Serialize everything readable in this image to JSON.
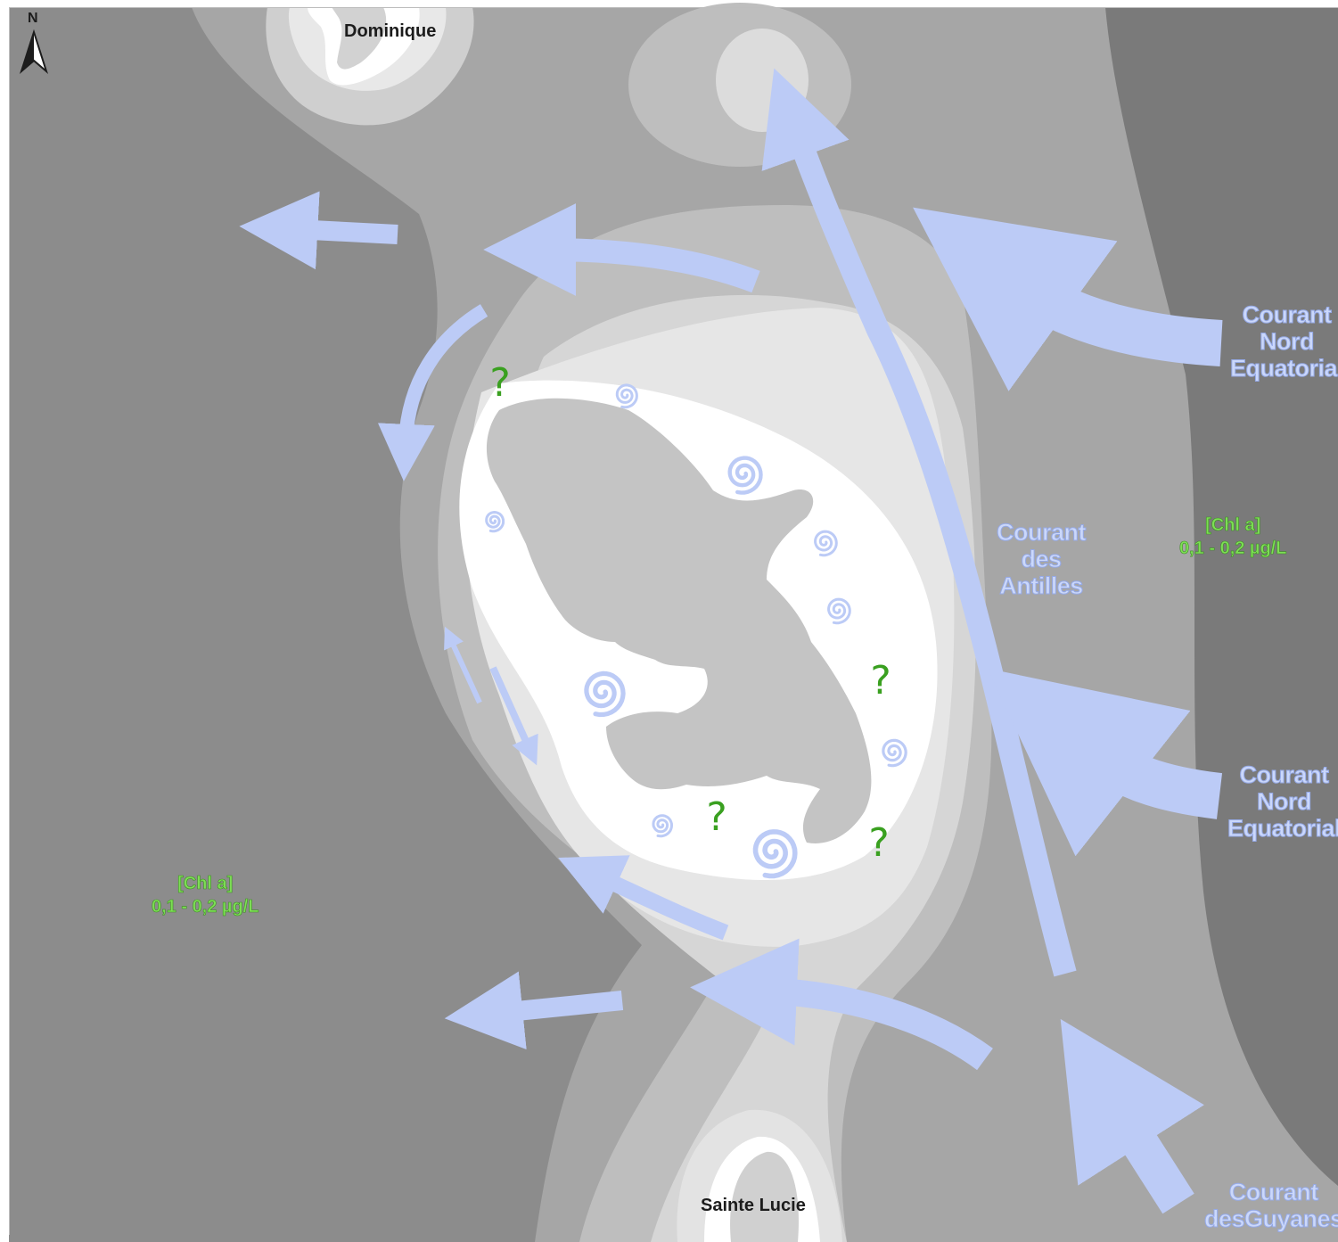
{
  "map": {
    "north_arrow": {
      "letter": "N",
      "icon": "north-arrow-icon"
    },
    "islands": {
      "north": "Dominique",
      "south": "Sainte Lucie"
    },
    "currents": {
      "north_equatorial_1": [
        "Courant",
        "Nord",
        "Equatorial"
      ],
      "north_equatorial_2": [
        "Courant",
        "Nord",
        "Equatorial"
      ],
      "antilles": [
        "Courant",
        "des",
        "Antilles"
      ],
      "guyanes": [
        "Courant",
        "desGuyanes"
      ]
    },
    "chlorophyll": {
      "west": [
        "[Chl a]",
        "0,1 - 0,2 µg/L"
      ],
      "east": [
        "[Chl a]",
        "0,1 - 0,2 µg/L"
      ]
    },
    "uncertainty_marker": "?",
    "colors": {
      "ocean_deep": "#8c8c8c",
      "ocean_mid": "#a6a6a6",
      "ocean_light": "#bebebe",
      "ocean_pale": "#d6d6d6",
      "coastal": "#e6e6e6",
      "nearshore": "#ffffff",
      "land": "#c4c4c4",
      "current_arrow": "#bccbf6",
      "question_mark": "#3aa020",
      "chl_text": "#7dde55"
    }
  }
}
